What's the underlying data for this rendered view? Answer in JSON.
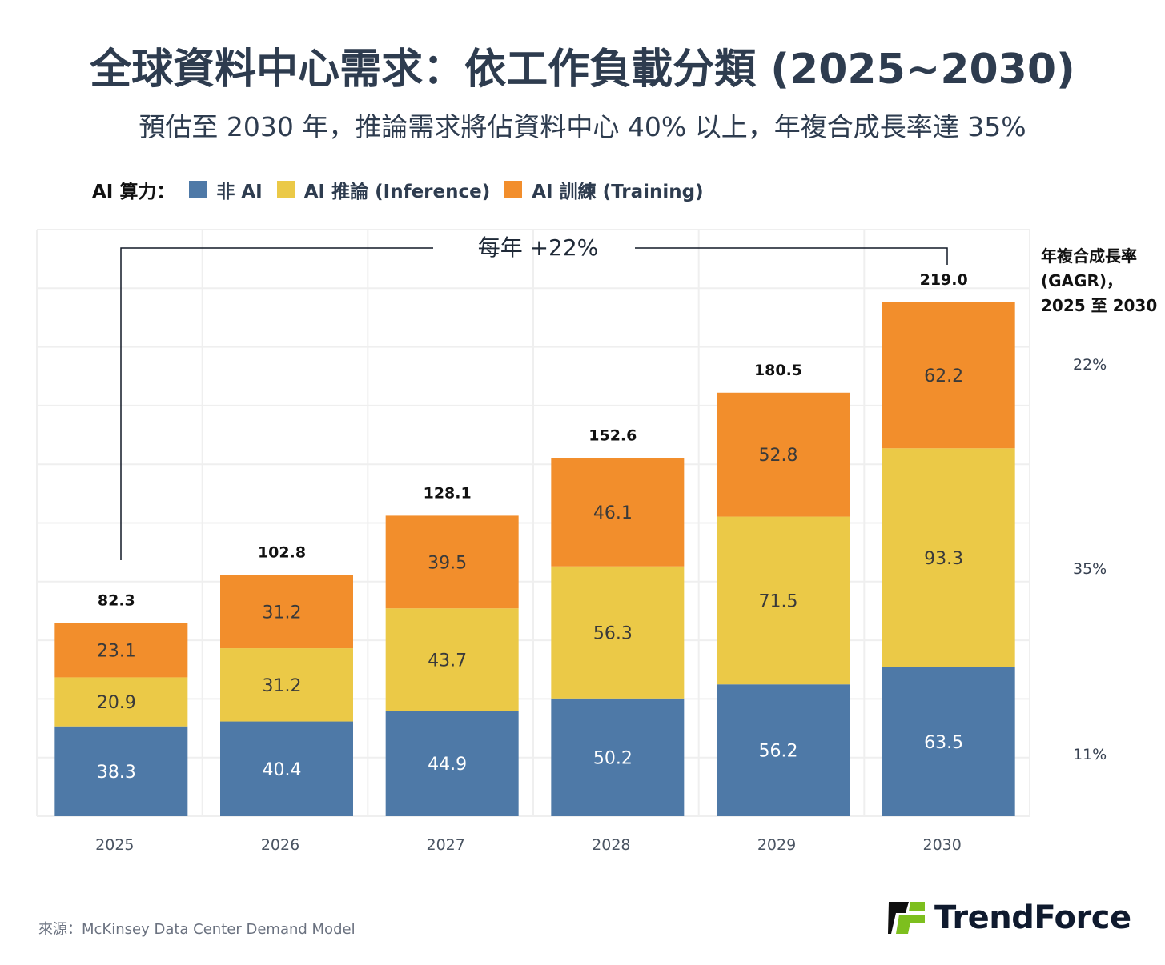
{
  "title": "全球資料中心需求：依工作負載分類 (2025~2030)",
  "subtitle": "預估至 2030 年，推論需求將佔資料中心 40% 以上，年複合成長率達 35%",
  "legend": {
    "heading": "AI 算力：",
    "items": [
      {
        "label": "非 AI",
        "color": "#4e79a7"
      },
      {
        "label": "AI 推論 (Inference)",
        "color": "#ebc947"
      },
      {
        "label": "AI 訓練 (Training)",
        "color": "#f28e2c"
      }
    ]
  },
  "annotation": "每年 +22%",
  "gagr": {
    "title_lines": [
      "年複合成長率",
      "(GAGR)，",
      "2025 至 2030"
    ],
    "values": {
      "training": "22%",
      "inference": "35%",
      "non_ai": "11%"
    }
  },
  "source": "來源：McKinsey Data Center Demand Model",
  "logo": "TrendForce",
  "chart_data": {
    "type": "bar",
    "stacked": true,
    "categories": [
      "2025",
      "2026",
      "2027",
      "2028",
      "2029",
      "2030"
    ],
    "series": [
      {
        "name": "非 AI",
        "color": "#4e79a7",
        "values": [
          38.3,
          40.4,
          44.9,
          50.2,
          56.2,
          63.5
        ]
      },
      {
        "name": "AI 推論 (Inference)",
        "color": "#ebc947",
        "values": [
          20.9,
          31.2,
          43.7,
          56.3,
          71.5,
          93.3
        ]
      },
      {
        "name": "AI 訓練 (Training)",
        "color": "#f28e2c",
        "values": [
          23.1,
          31.2,
          39.5,
          46.1,
          52.8,
          62.2
        ]
      }
    ],
    "totals": [
      "82.3",
      "102.8",
      "128.1",
      "152.6",
      "180.5",
      "219.0"
    ],
    "ylim": [
      0,
      250
    ],
    "grid": true,
    "legend_position": "top-left"
  }
}
